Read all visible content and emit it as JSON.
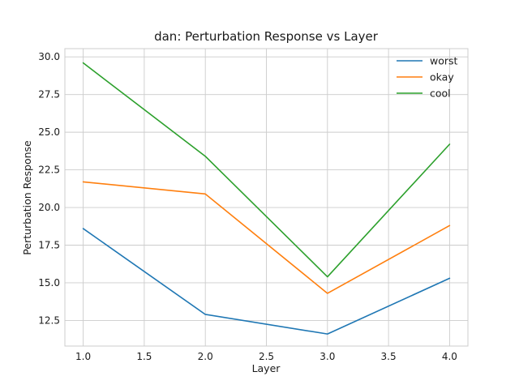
{
  "chart_data": {
    "type": "line",
    "title": "dan: Perturbation Response vs Layer",
    "xlabel": "Layer",
    "ylabel": "Perturbation Response",
    "x": [
      1.0,
      2.0,
      3.0,
      4.0
    ],
    "xlim": [
      0.85,
      4.15
    ],
    "ylim": [
      10.8,
      30.55
    ],
    "xticks": [
      "1.0",
      "1.5",
      "2.0",
      "2.5",
      "3.0",
      "3.5",
      "4.0"
    ],
    "yticks": [
      "12.5",
      "15.0",
      "17.5",
      "20.0",
      "22.5",
      "25.0",
      "27.5",
      "30.0"
    ],
    "grid": true,
    "legend_position": "top-right",
    "series": [
      {
        "name": "worst",
        "color": "#1f77b4",
        "values": [
          18.6,
          12.9,
          11.6,
          15.3
        ]
      },
      {
        "name": "okay",
        "color": "#ff7f0e",
        "values": [
          21.7,
          20.9,
          14.3,
          18.8
        ]
      },
      {
        "name": "cool",
        "color": "#2ca02c",
        "values": [
          29.6,
          23.4,
          15.4,
          24.2
        ]
      }
    ]
  }
}
